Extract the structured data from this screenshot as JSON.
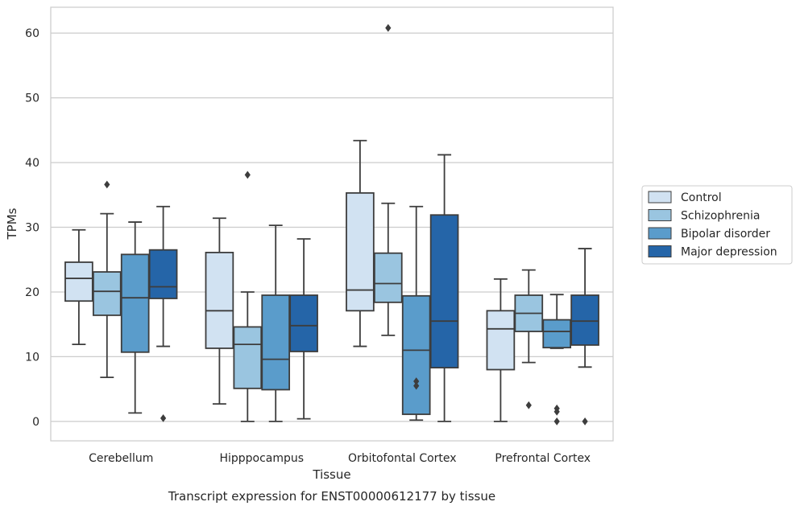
{
  "chart_data": {
    "type": "boxplot",
    "caption": "Transcript expression for ENST00000612177 by tissue",
    "xlabel": "Tissue",
    "ylabel": "TPMs",
    "ylim": [
      -3,
      64
    ],
    "yticks": [
      0,
      10,
      20,
      30,
      40,
      50,
      60
    ],
    "grid": true,
    "legend_position": "right",
    "categories": [
      "Cerebellum",
      "Hipppocampus",
      "Orbitofontal Cortex",
      "Prefrontal Cortex"
    ],
    "series": [
      {
        "name": "Control",
        "color": "#d1e2f2",
        "boxes": [
          {
            "q1": 18.6,
            "median": 22.1,
            "q3": 24.6,
            "whisker_low": 11.9,
            "whisker_high": 29.6,
            "outliers": []
          },
          {
            "q1": 11.3,
            "median": 17.1,
            "q3": 26.1,
            "whisker_low": 2.7,
            "whisker_high": 31.4,
            "outliers": []
          },
          {
            "q1": 17.1,
            "median": 20.3,
            "q3": 35.3,
            "whisker_low": 11.6,
            "whisker_high": 43.4,
            "outliers": []
          },
          {
            "q1": 8.0,
            "median": 14.3,
            "q3": 17.1,
            "whisker_low": 0.0,
            "whisker_high": 22.0,
            "outliers": []
          }
        ]
      },
      {
        "name": "Schizophrenia",
        "color": "#9ac5e0",
        "boxes": [
          {
            "q1": 16.4,
            "median": 20.1,
            "q3": 23.1,
            "whisker_low": 6.8,
            "whisker_high": 32.1,
            "outliers": [
              36.6
            ]
          },
          {
            "q1": 5.1,
            "median": 11.9,
            "q3": 14.6,
            "whisker_low": 0.0,
            "whisker_high": 20.0,
            "outliers": [
              38.1
            ]
          },
          {
            "q1": 18.4,
            "median": 21.3,
            "q3": 26.0,
            "whisker_low": 13.3,
            "whisker_high": 33.7,
            "outliers": [
              60.8
            ]
          },
          {
            "q1": 13.9,
            "median": 16.7,
            "q3": 19.5,
            "whisker_low": 9.1,
            "whisker_high": 23.4,
            "outliers": [
              2.5
            ]
          }
        ]
      },
      {
        "name": "Bipolar disorder",
        "color": "#5a9ccb",
        "boxes": [
          {
            "q1": 10.7,
            "median": 19.1,
            "q3": 25.8,
            "whisker_low": 1.3,
            "whisker_high": 30.8,
            "outliers": []
          },
          {
            "q1": 4.9,
            "median": 9.6,
            "q3": 19.5,
            "whisker_low": 0.0,
            "whisker_high": 30.3,
            "outliers": []
          },
          {
            "q1": 1.1,
            "median": 11.0,
            "q3": 19.4,
            "whisker_low": 0.2,
            "whisker_high": 33.2,
            "outliers": [
              6.2,
              5.5
            ]
          },
          {
            "q1": 11.4,
            "median": 13.9,
            "q3": 15.7,
            "whisker_low": 11.3,
            "whisker_high": 19.6,
            "outliers": [
              2.0,
              1.5,
              0.0
            ]
          }
        ]
      },
      {
        "name": "Major depression",
        "color": "#2565a8",
        "boxes": [
          {
            "q1": 19.0,
            "median": 20.8,
            "q3": 26.5,
            "whisker_low": 11.6,
            "whisker_high": 33.2,
            "outliers": [
              0.5
            ]
          },
          {
            "q1": 10.8,
            "median": 14.8,
            "q3": 19.5,
            "whisker_low": 0.4,
            "whisker_high": 28.2,
            "outliers": []
          },
          {
            "q1": 8.3,
            "median": 15.5,
            "q3": 31.9,
            "whisker_low": 0.0,
            "whisker_high": 41.2,
            "outliers": []
          },
          {
            "q1": 11.8,
            "median": 15.5,
            "q3": 19.5,
            "whisker_low": 8.4,
            "whisker_high": 26.7,
            "outliers": [
              0.0
            ]
          }
        ]
      }
    ]
  }
}
